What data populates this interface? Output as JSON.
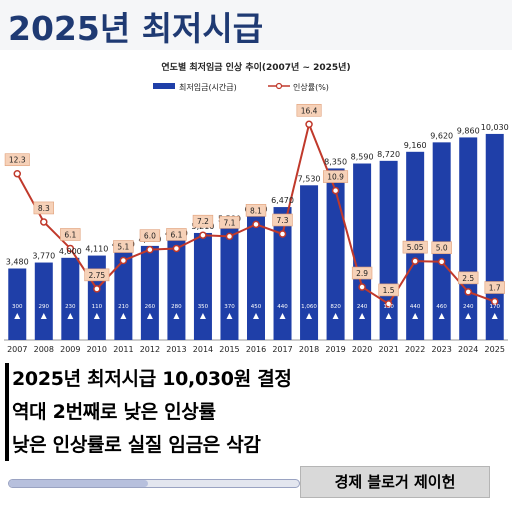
{
  "header": {
    "title": "2025년 최저시급"
  },
  "captions": [
    "2025년 최저시급 10,030원 결정",
    "역대 2번째로 낮은 인상률",
    "낮은 인상률로 실질 임금은 삭감"
  ],
  "author": "경제 블로거 제이헌",
  "bottom_slider": {
    "value": 0.48
  },
  "colors": {
    "bar": "#1f3fa8",
    "line": "#c0392b",
    "title": "#1f3a73"
  },
  "chart_data": {
    "type": "bar",
    "title": "연도별 최저임금 인상 추이(2007년 ~ 2025년)",
    "legend": {
      "bar": "최저임금(시간급)",
      "line": "인상률(%)",
      "placement": "top"
    },
    "categories": [
      "2007",
      "2008",
      "2009",
      "2010",
      "2011",
      "2012",
      "2013",
      "2014",
      "2015",
      "2016",
      "2017",
      "2018",
      "2019",
      "2020",
      "2021",
      "2022",
      "2023",
      "2024",
      "2025"
    ],
    "values": [
      3480,
      3770,
      4000,
      4110,
      4320,
      4580,
      4860,
      5210,
      5580,
      6030,
      6470,
      7530,
      8350,
      8590,
      8720,
      9160,
      9620,
      9860,
      10030
    ],
    "value_labels": [
      "3,480",
      "3,770",
      "4,000",
      "4,110",
      "4,320",
      "4,580",
      "4,860",
      "5,210",
      "5,580",
      "6,030",
      "6,470",
      "7,530",
      "8,350",
      "8,590",
      "8,720",
      "9,160",
      "9,620",
      "9,860",
      "10,030"
    ],
    "increases": [
      "300",
      "290",
      "230",
      "110",
      "210",
      "260",
      "280",
      "350",
      "370",
      "450",
      "440",
      "1,060",
      "820",
      "240",
      "130",
      "440",
      "460",
      "240",
      "170"
    ],
    "rate": [
      12.3,
      8.3,
      6.1,
      2.75,
      5.1,
      6.0,
      6.1,
      7.2,
      7.1,
      8.1,
      7.3,
      16.4,
      10.9,
      2.9,
      1.5,
      5.05,
      5.0,
      2.5,
      1.7
    ],
    "rate_labels": [
      "12.3",
      "8.3",
      "6.1",
      "2.75",
      "5.1",
      "6.0",
      "6.1",
      "7.2",
      "7.1",
      "8.1",
      "7.3",
      "16.4",
      "10.9",
      "2.9",
      "1.5",
      "5.05",
      "5.0",
      "2.5",
      "1.7"
    ],
    "ylim": [
      0,
      11000
    ],
    "rate_ylim": [
      0,
      18
    ],
    "grid": false
  }
}
